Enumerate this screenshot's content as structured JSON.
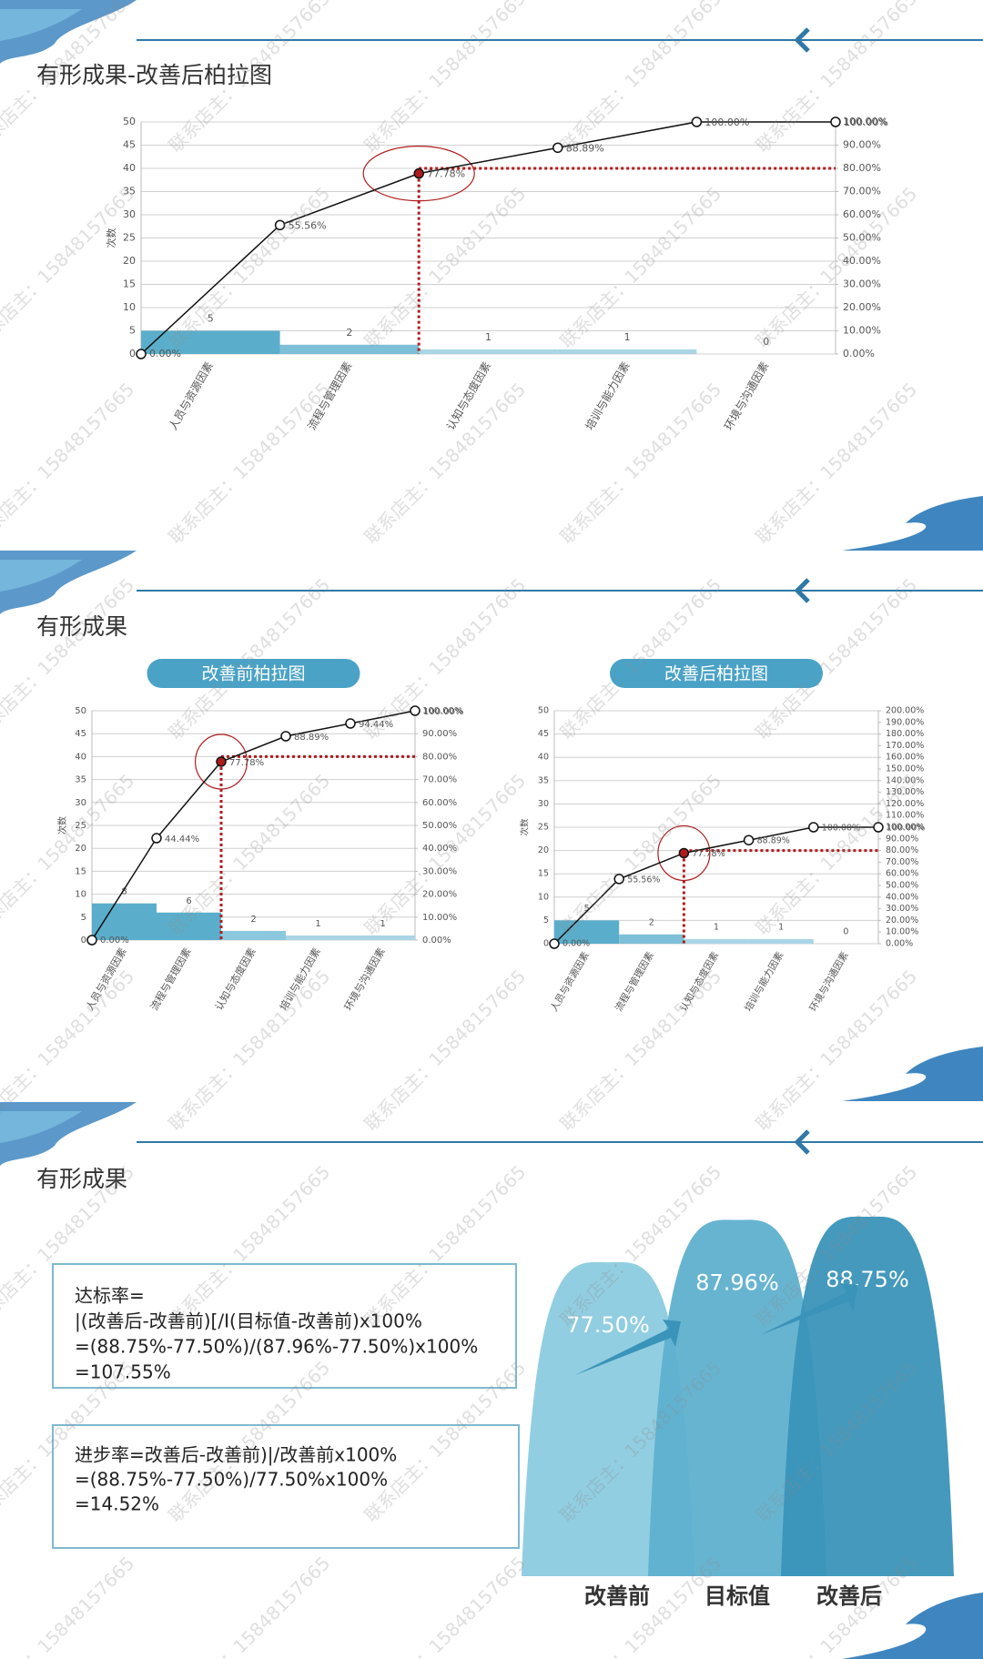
{
  "watermark": "联系店主：15848157665",
  "slides": [
    {
      "title": "有形成果-改善后柏拉图"
    },
    {
      "title": "有形成果"
    },
    {
      "title": "有形成果",
      "boxes": [
        [
          "达标率=",
          "|(改善后-改善前)[/I(目标值-改善前)x100%",
          "=(88.75%-77.50%)/(87.96%-77.50%)x100%",
          "=107.55%"
        ],
        [
          "进步率=改善后-改善前)|/改善前x100%",
          "=(88.75%-77.50%)/77.50%x100%",
          "=14.52%"
        ]
      ]
    }
  ],
  "chart_data": [
    {
      "type": "pareto",
      "ylabel": "次数",
      "categories": [
        "人员与资源因素",
        "流程与管理因素",
        "认知与态度因素",
        "培训与能力因素",
        "环境与沟通因素"
      ],
      "values": [
        5,
        2,
        1,
        1,
        0
      ],
      "colors": [
        "#5aaecb",
        "#7dbfd6",
        "#a9d5e5",
        "#a9d5e5",
        "#a9d5e5"
      ],
      "line_values": [
        0,
        55.56,
        77.78,
        88.89,
        100,
        100
      ],
      "line_value_labels": [
        "0.00%",
        "55.56%",
        "77.78%",
        "88.89%",
        "100.00%",
        "100.00%"
      ],
      "line_color": "#111111",
      "highlight": 2,
      "target": 80,
      "target_color": "#b01c1c",
      "ylim": [
        0,
        50
      ],
      "yticks": [
        0,
        5,
        10,
        15,
        20,
        25,
        30,
        35,
        40,
        45,
        50
      ],
      "y2lim": [
        0,
        100
      ],
      "y2ticks": [
        {
          "value": 0,
          "label": "0.00%"
        },
        {
          "value": 10,
          "label": "10.00%"
        },
        {
          "value": 20,
          "label": "20.00%"
        },
        {
          "value": 30,
          "label": "30.00%"
        },
        {
          "value": 40,
          "label": "40.00%"
        },
        {
          "value": 50,
          "label": "50.00%"
        },
        {
          "value": 60,
          "label": "60.00%"
        },
        {
          "value": 70,
          "label": "70.00%"
        },
        {
          "value": 80,
          "label": "80.00%"
        },
        {
          "value": 90,
          "label": "90.00%"
        },
        {
          "value": 100,
          "label": "100.00%"
        }
      ],
      "grid": true
    },
    {
      "type": "pareto",
      "title": "改善前柏拉图",
      "ylabel": "次数",
      "categories": [
        "人员与资源因素",
        "流程与管理因素",
        "认知与态度因素",
        "培训与能力因素",
        "环境与沟通因素"
      ],
      "values": [
        8,
        6,
        2,
        1,
        1
      ],
      "colors": [
        "#5aaecb",
        "#5aaecb",
        "#8cc8dd",
        "#a9d5e5",
        "#a9d5e5"
      ],
      "line_values": [
        0,
        44.44,
        77.78,
        88.89,
        94.44,
        100
      ],
      "line_value_labels": [
        "0.00%",
        "44.44%",
        "77.78%",
        "88.89%",
        "94.44%",
        "100.00%"
      ],
      "line_color": "#111111",
      "highlight": 2,
      "target": 80,
      "target_color": "#b01c1c",
      "ylim": [
        0,
        50
      ],
      "yticks": [
        0,
        5,
        10,
        15,
        20,
        25,
        30,
        35,
        40,
        45,
        50
      ],
      "y2lim": [
        0,
        100
      ],
      "y2ticks": [
        {
          "value": 0,
          "label": "0.00%"
        },
        {
          "value": 10,
          "label": "10.00%"
        },
        {
          "value": 20,
          "label": "20.00%"
        },
        {
          "value": 30,
          "label": "30.00%"
        },
        {
          "value": 40,
          "label": "40.00%"
        },
        {
          "value": 50,
          "label": "50.00%"
        },
        {
          "value": 60,
          "label": "60.00%"
        },
        {
          "value": 70,
          "label": "70.00%"
        },
        {
          "value": 80,
          "label": "80.00%"
        },
        {
          "value": 90,
          "label": "90.00%"
        },
        {
          "value": 100,
          "label": "100.00%"
        }
      ],
      "grid": true
    },
    {
      "type": "pareto",
      "title": "改善后柏拉图",
      "ylabel": "次数",
      "categories": [
        "人员与资源因素",
        "流程与管理因素",
        "认知与态度因素",
        "培训与能力因素",
        "环境与沟通因素"
      ],
      "values": [
        5,
        2,
        1,
        1,
        0
      ],
      "colors": [
        "#5aaecb",
        "#7dbfd6",
        "#a9d5e5",
        "#a9d5e5",
        "#a9d5e5"
      ],
      "line_values": [
        0,
        55.56,
        77.78,
        88.89,
        100,
        100
      ],
      "line_value_labels": [
        "0.00%",
        "55.56%",
        "77.78%",
        "88.89%",
        "100.00%",
        "100.00%"
      ],
      "line_color": "#111111",
      "highlight": 2,
      "target": 80,
      "target_color": "#b01c1c",
      "ylim": [
        0,
        50
      ],
      "yticks": [
        0,
        5,
        10,
        15,
        20,
        25,
        30,
        35,
        40,
        45,
        50
      ],
      "y2lim": [
        0,
        200
      ],
      "y2ticks": [
        {
          "value": 0,
          "label": "0.00%"
        },
        {
          "value": 10,
          "label": "10.00%"
        },
        {
          "value": 20,
          "label": "20.00%"
        },
        {
          "value": 30,
          "label": "30.00%"
        },
        {
          "value": 40,
          "label": "40.00%"
        },
        {
          "value": 50,
          "label": "50.00%"
        },
        {
          "value": 60,
          "label": "60.00%"
        },
        {
          "value": 70,
          "label": "70.00%"
        },
        {
          "value": 80,
          "label": "80.00%"
        },
        {
          "value": 90,
          "label": "90.00%"
        },
        {
          "value": 100,
          "label": "100.00%"
        },
        {
          "value": 110,
          "label": "110.00%"
        },
        {
          "value": 120,
          "label": "120.00%"
        },
        {
          "value": 130,
          "label": "130.00%"
        },
        {
          "value": 140,
          "label": "140.00%"
        },
        {
          "value": 150,
          "label": "150.00%"
        },
        {
          "value": 160,
          "label": "160.00%"
        },
        {
          "value": 170,
          "label": "170.00%"
        },
        {
          "value": 180,
          "label": "180.00%"
        },
        {
          "value": 190,
          "label": "190.00%"
        },
        {
          "value": 200,
          "label": "200.00%"
        }
      ],
      "grid": true
    },
    {
      "type": "mountain",
      "categories": [
        "改善前",
        "目标值",
        "改善后"
      ],
      "values": [
        77.5,
        87.96,
        88.75
      ],
      "value_labels": [
        "77.50%",
        "87.96%",
        "88.75%"
      ],
      "colors": [
        "#8ccbdf",
        "#5fb0cf",
        "#3a93b9"
      ]
    }
  ]
}
